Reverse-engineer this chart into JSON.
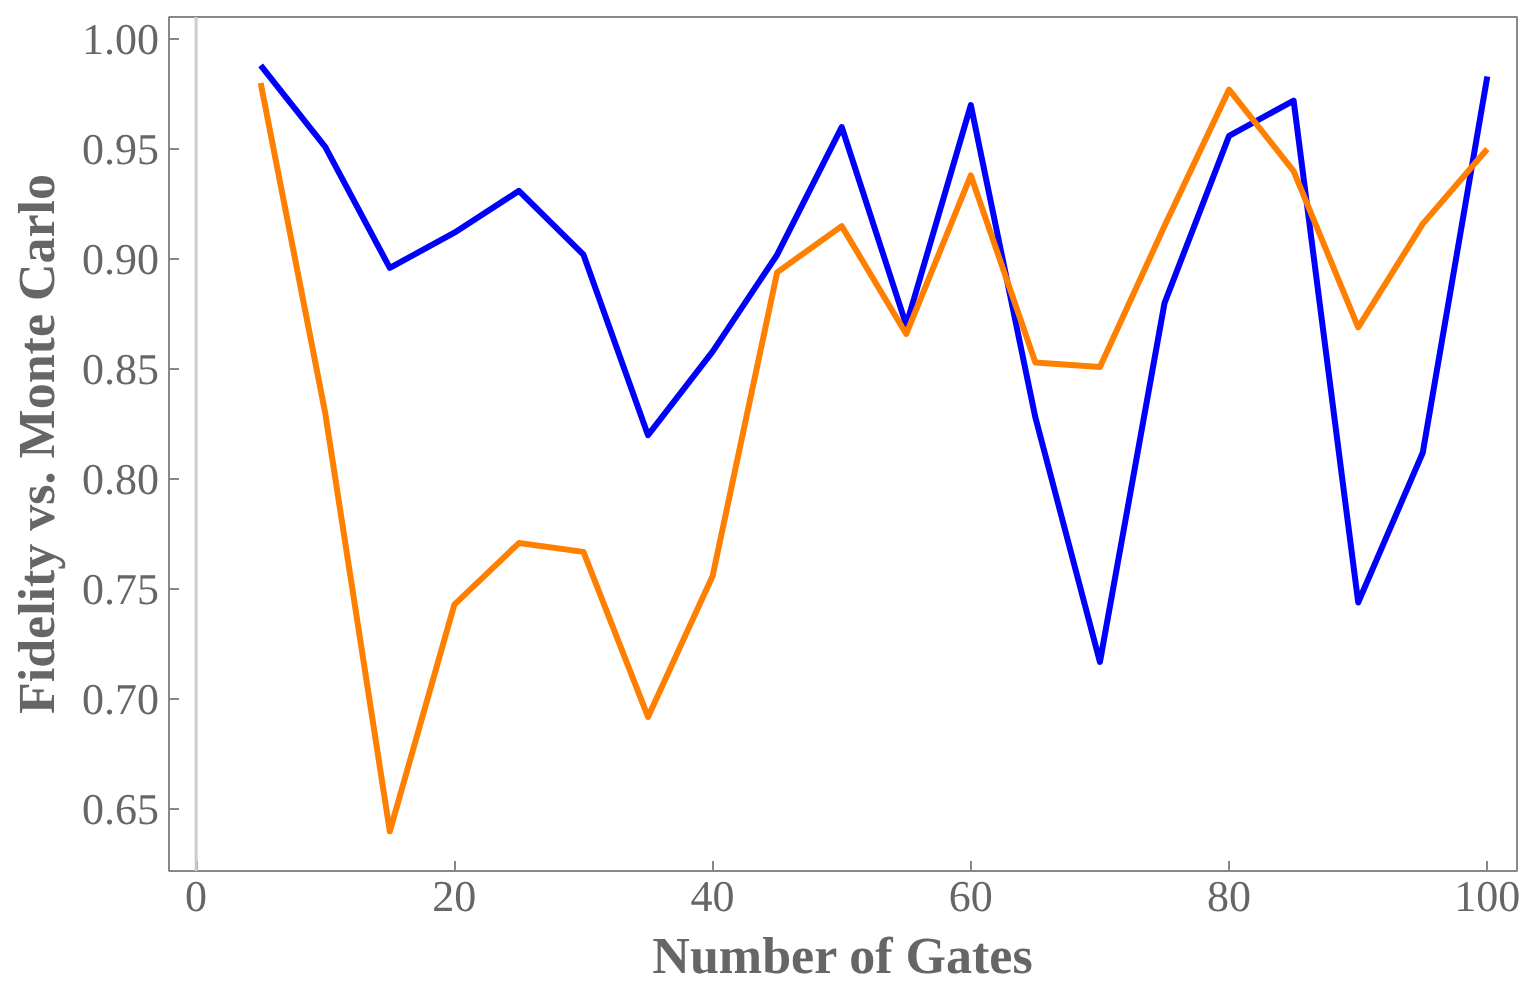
{
  "chart_data": {
    "type": "line",
    "xlabel": "Number of Gates",
    "ylabel": "Fidelity vs. Monte Carlo",
    "x": [
      5,
      10,
      15,
      20,
      25,
      30,
      35,
      40,
      45,
      50,
      55,
      60,
      65,
      70,
      75,
      80,
      85,
      90,
      95,
      100
    ],
    "series": [
      {
        "color": "#0000ff",
        "values": [
          0.988,
          0.951,
          0.896,
          0.912,
          0.931,
          0.902,
          0.82,
          0.858,
          0.902,
          0.96,
          0.87,
          0.97,
          0.828,
          0.717,
          0.88,
          0.956,
          0.972,
          0.744,
          0.812,
          0.983
        ]
      },
      {
        "color": "#ff8000",
        "values": [
          0.98,
          0.83,
          0.64,
          0.743,
          0.771,
          0.767,
          0.692,
          0.756,
          0.894,
          0.915,
          0.866,
          0.938,
          0.853,
          0.851,
          0.915,
          0.977,
          0.94,
          0.869,
          0.916,
          0.95
        ]
      }
    ],
    "xlim": [
      -2.1,
      102.3
    ],
    "ylim": [
      0.622,
      1.01
    ],
    "xticks": [
      0,
      20,
      40,
      60,
      80,
      100
    ],
    "yticks": [
      {
        "value": 0.65,
        "label": "0.65"
      },
      {
        "value": 0.7,
        "label": "0.70"
      },
      {
        "value": 0.75,
        "label": "0.75"
      },
      {
        "value": 0.8,
        "label": "0.80"
      },
      {
        "value": 0.85,
        "label": "0.85"
      },
      {
        "value": 0.9,
        "label": "0.90"
      },
      {
        "value": 0.95,
        "label": "0.95"
      },
      {
        "value": 1.0,
        "label": "1.00"
      }
    ],
    "ref_lines": [
      {
        "axis": "x",
        "value": 0,
        "color": "#cccccc"
      }
    ],
    "grid": false
  }
}
